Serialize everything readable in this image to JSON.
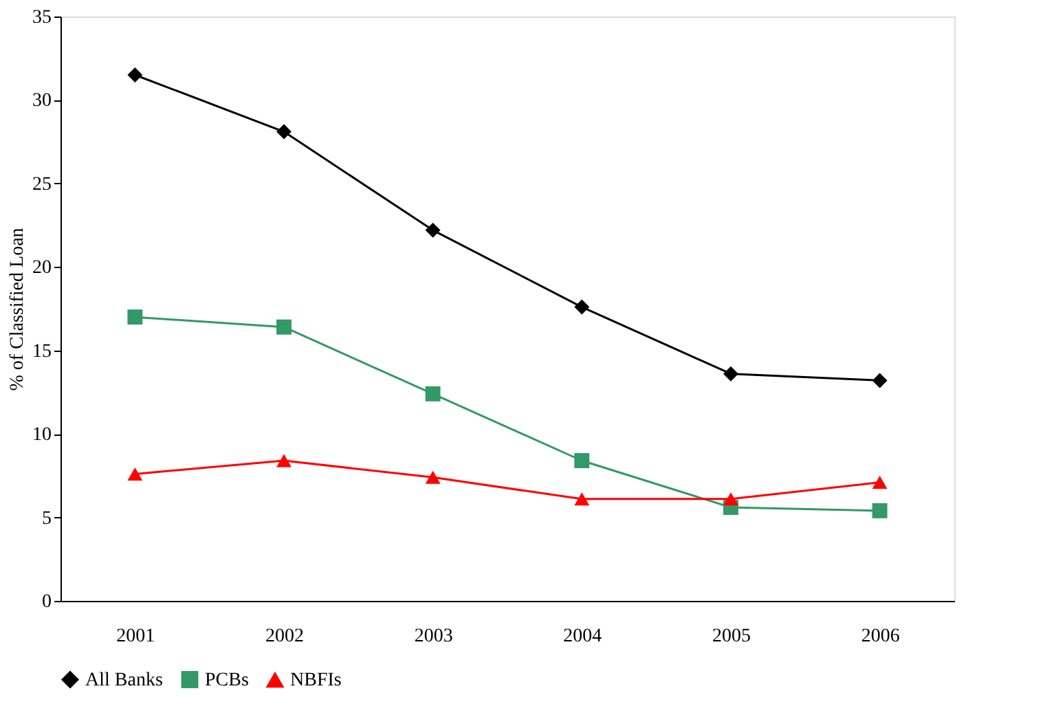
{
  "chart_data": {
    "type": "line",
    "ylabel": "% of Classified Loan",
    "categories": [
      "2001",
      "2002",
      "2003",
      "2004",
      "2005",
      "2006"
    ],
    "series": [
      {
        "name": "All Banks",
        "color": "#000000",
        "marker": "diamond",
        "values": [
          31.5,
          28.1,
          22.2,
          17.6,
          13.6,
          13.2
        ]
      },
      {
        "name": "PCBs",
        "color": "#339966",
        "marker": "square",
        "values": [
          17.0,
          16.4,
          12.4,
          8.4,
          5.6,
          5.4
        ]
      },
      {
        "name": "NBFIs",
        "color": "#ff0000",
        "marker": "triangle",
        "values": [
          7.6,
          8.4,
          7.4,
          6.1,
          6.1,
          7.1
        ]
      }
    ],
    "ylim": [
      0,
      35
    ],
    "yticks": [
      0,
      5,
      10,
      15,
      20,
      25,
      30,
      35
    ],
    "grid": false,
    "legend": "bottom"
  }
}
